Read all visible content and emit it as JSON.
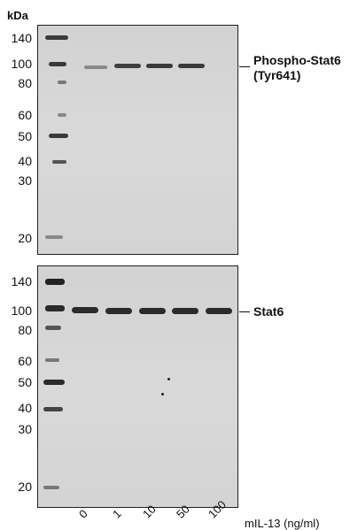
{
  "mw_unit": "kDa",
  "panel_top": {
    "mw_markers": [
      "140",
      "100",
      "80",
      "60",
      "50",
      "40",
      "30",
      "20"
    ],
    "target_label_line1": "Phospho-Stat6",
    "target_label_line2": "(Tyr641)"
  },
  "panel_bottom": {
    "mw_markers": [
      "140",
      "100",
      "80",
      "60",
      "50",
      "40",
      "30",
      "20"
    ],
    "target_label": "Stat6"
  },
  "lanes": [
    "0",
    "1",
    "10",
    "50",
    "100"
  ],
  "condition_label": "mIL-13 (ng/ml)"
}
